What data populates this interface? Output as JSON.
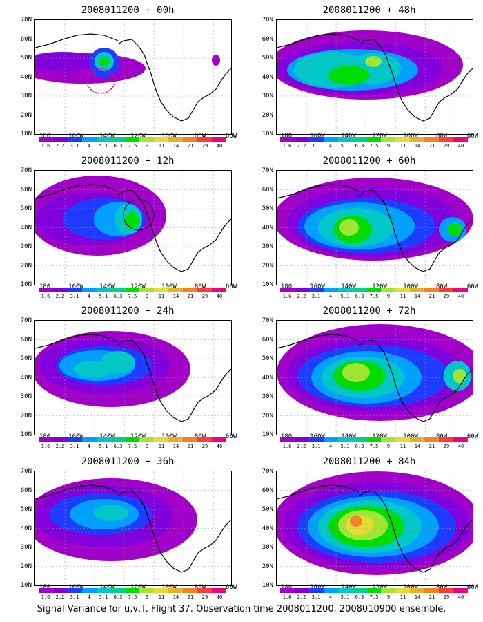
{
  "caption": "Signal Variance for u,v,T. Flight 37. Observation time 2008011200. 2008010900 ensemble.",
  "colorbar": {
    "labels": [
      "1.6",
      "2.2",
      "3.1",
      "4",
      "5.1",
      "6.3",
      "7.5",
      "9",
      "11",
      "14",
      "21",
      "29",
      "40"
    ],
    "colors": [
      "#a000c8",
      "#8200dc",
      "#1e3cff",
      "#00a0ff",
      "#00c8c8",
      "#00d28c",
      "#00dc00",
      "#a0e632",
      "#e6dc32",
      "#e6af2d",
      "#f08228",
      "#fa3c3c",
      "#f00082"
    ]
  },
  "lat_labels": [
    "70N",
    "60N",
    "50N",
    "40N",
    "30N",
    "20N",
    "10N"
  ],
  "lon_labels": [
    "180",
    "160W",
    "140W",
    "120W",
    "100W",
    "80W",
    "60W"
  ],
  "panels": [
    {
      "title": "2008011200 + 00h"
    },
    {
      "title": "2008011200 + 48h"
    },
    {
      "title": "2008011200 + 12h"
    },
    {
      "title": "2008011200 + 60h"
    },
    {
      "title": "2008011200 + 24h"
    },
    {
      "title": "2008011200 + 72h"
    },
    {
      "title": "2008011200 + 36h"
    },
    {
      "title": "2008011200 + 84h"
    }
  ]
}
